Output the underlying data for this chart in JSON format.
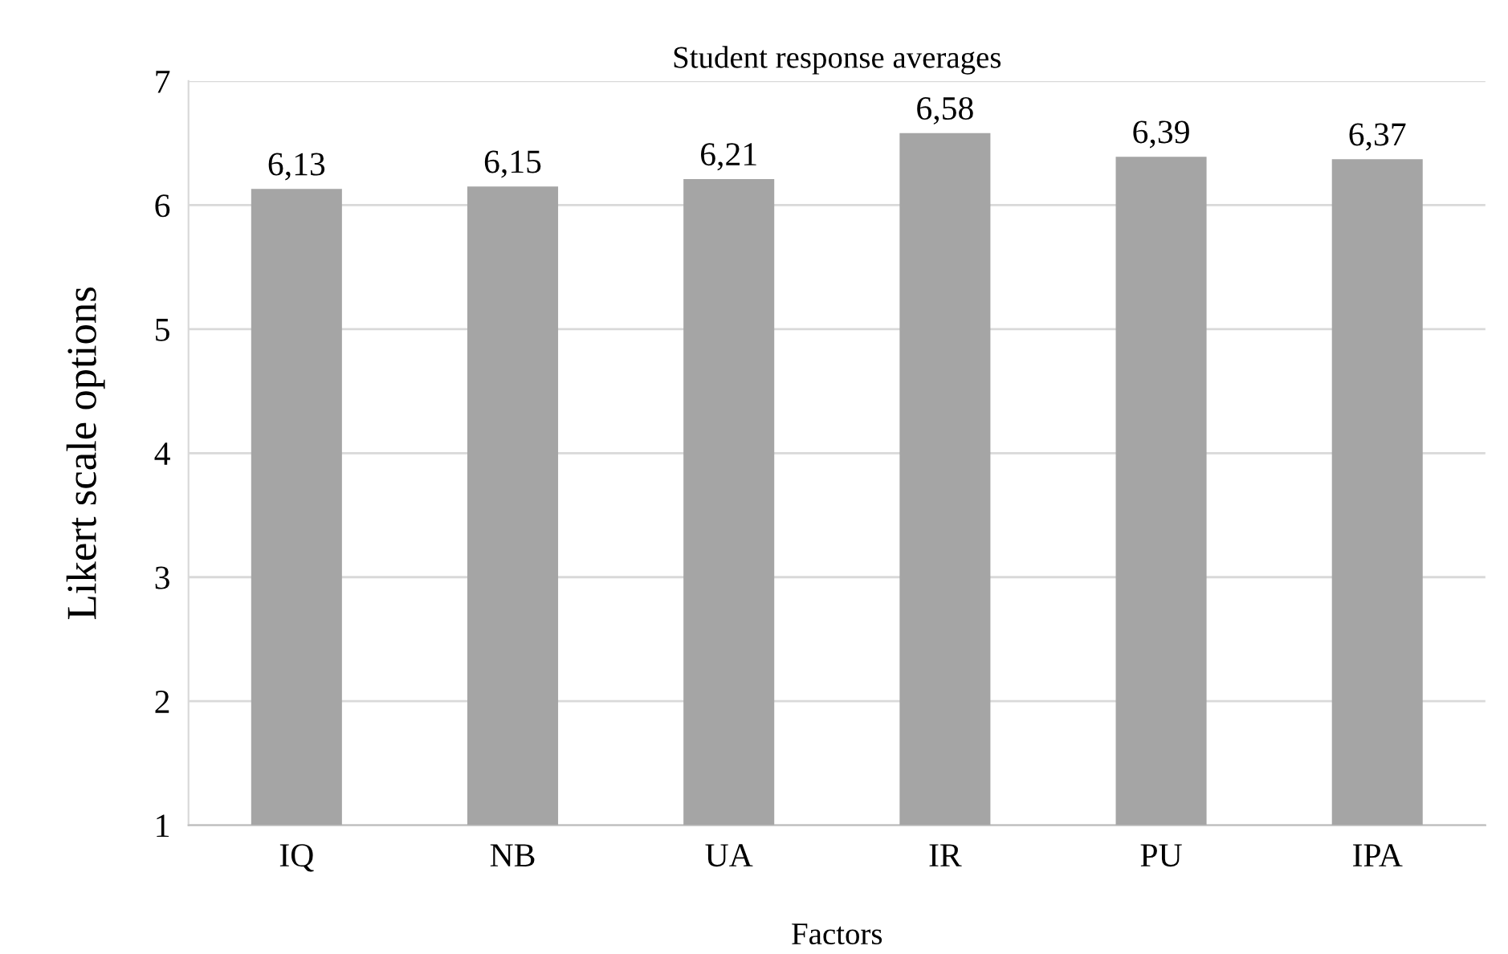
{
  "chart_data": {
    "type": "bar",
    "title": "Student response averages",
    "xlabel": "Factors",
    "ylabel": "Likert scale options",
    "categories": [
      "IQ",
      "NB",
      "UA",
      "IR",
      "PU",
      "IPA"
    ],
    "values": [
      6.13,
      6.15,
      6.21,
      6.58,
      6.39,
      6.37
    ],
    "value_labels": [
      "6,13",
      "6,15",
      "6,21",
      "6,58",
      "6,39",
      "6,37"
    ],
    "color": "#a5a5a5",
    "ylim": [
      1,
      7
    ],
    "yticks": [
      1,
      2,
      3,
      4,
      5,
      6,
      7
    ],
    "grid": "y",
    "legend": false
  }
}
